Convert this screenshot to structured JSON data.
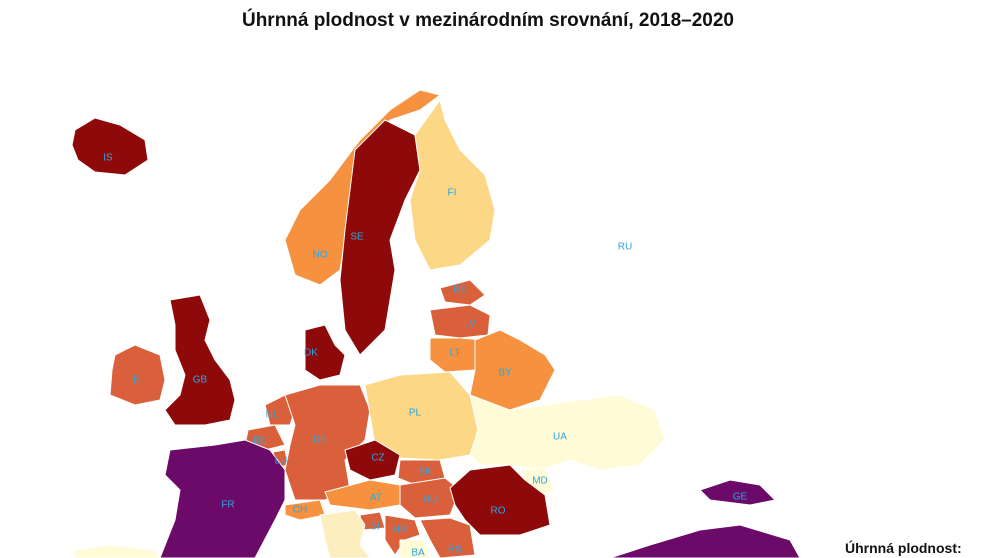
{
  "title": "Úhrnná plodnost v mezinárodním srovnání, 2018–2020",
  "legend_title": "Úhrnná plodnost:",
  "regions": [
    {
      "code": "RU",
      "color": "#ffffff"
    },
    {
      "code": "IS",
      "color": "#8e0a0a"
    },
    {
      "code": "NO",
      "color": "#f5913f"
    },
    {
      "code": "SE",
      "color": "#8e0a0a"
    },
    {
      "code": "FI",
      "color": "#fcd785"
    },
    {
      "code": "EE",
      "color": "#d9603b"
    },
    {
      "code": "LV",
      "color": "#d9603b"
    },
    {
      "code": "LT",
      "color": "#f5913f"
    },
    {
      "code": "BY",
      "color": "#f5913f"
    },
    {
      "code": "GB",
      "color": "#8e0a0a"
    },
    {
      "code": "IE",
      "color": "#d9603b"
    },
    {
      "code": "DK",
      "color": "#8e0a0a"
    },
    {
      "code": "NL",
      "color": "#d9603b"
    },
    {
      "code": "BE",
      "color": "#d9603b"
    },
    {
      "code": "LU",
      "color": "#d9603b"
    },
    {
      "code": "DE",
      "color": "#d9603b"
    },
    {
      "code": "FR",
      "color": "#6b0a68"
    },
    {
      "code": "PL",
      "color": "#fcd785"
    },
    {
      "code": "CZ",
      "color": "#8e0a0a"
    },
    {
      "code": "SK",
      "color": "#d9603b"
    },
    {
      "code": "AT",
      "color": "#f5913f"
    },
    {
      "code": "CH",
      "color": "#f5913f"
    },
    {
      "code": "HU",
      "color": "#d9603b"
    },
    {
      "code": "UA",
      "color": "#fffbd6"
    },
    {
      "code": "MD",
      "color": "#fffbd6"
    },
    {
      "code": "RO",
      "color": "#8e0a0a"
    },
    {
      "code": "SI",
      "color": "#d9603b"
    },
    {
      "code": "HR",
      "color": "#d9603b"
    },
    {
      "code": "BA",
      "color": "#fffbd6"
    },
    {
      "code": "RS",
      "color": "#d9603b"
    },
    {
      "code": null,
      "color": "#fdeec0"
    },
    {
      "code": "GE",
      "color": "#6b0a68"
    },
    {
      "code": null,
      "color": "#6b0a68"
    },
    {
      "code": null,
      "color": "#fffbd6"
    }
  ]
}
